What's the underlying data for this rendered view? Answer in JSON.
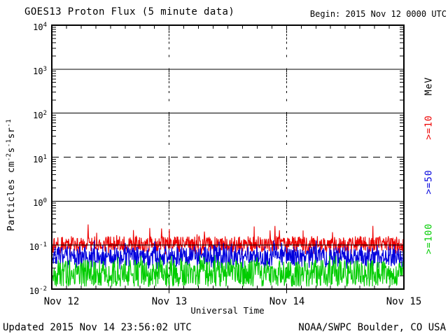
{
  "header": {
    "title": "GOES13 Proton Flux (5 minute data)",
    "begin_label": "Begin: 2015 Nov 12 0000 UTC"
  },
  "footer": {
    "updated": "Updated 2015 Nov 14 23:56:02 UTC",
    "source": "NOAA/SWPC Boulder, CO USA"
  },
  "axes": {
    "xlabel": "Universal Time",
    "ylabel": {
      "p0": "Particles cm",
      "s0": "-2",
      "p1": "s",
      "s1": "-1",
      "p2": "sr",
      "s2": "-1"
    },
    "x_tick_labels": [
      "Nov 12",
      "Nov 13",
      "Nov 14",
      "Nov 15"
    ],
    "y_tick_labels": [
      {
        "base": "10",
        "exp": "4"
      },
      {
        "base": "10",
        "exp": "3"
      },
      {
        "base": "10",
        "exp": "2"
      },
      {
        "base": "10",
        "exp": "1"
      },
      {
        "base": "10",
        "exp": "0"
      },
      {
        "base": "10",
        "exp": "-1"
      },
      {
        "base": "10",
        "exp": "-2"
      }
    ]
  },
  "legend": {
    "unit_label": "MeV",
    "unit_color": "#000000",
    "entries": [
      {
        "label": ">=10",
        "color": "#EE0000"
      },
      {
        "label": ">=50",
        "color": "#0000DD"
      },
      {
        "label": ">=100",
        "color": "#00CC00"
      }
    ]
  },
  "chart_data": {
    "type": "line",
    "title": "GOES13 Proton Flux (5 minute data)",
    "xlabel": "Universal Time",
    "ylabel": "Particles cm-2 s-1 sr-1",
    "y_scale": "log",
    "ylim": [
      0.01,
      10000
    ],
    "x_days": [
      "Nov 12",
      "Nov 13",
      "Nov 14",
      "Nov 15"
    ],
    "x_minor_tick_hours": 3,
    "sample_interval_minutes": 5,
    "points_per_day": 288,
    "grid_solid_flux": [
      1000,
      100,
      1,
      0.1
    ],
    "grid_dashed_flux": [
      10
    ],
    "dashed_day_columns": [
      "Nov 13",
      "Nov 14"
    ],
    "series": [
      {
        "name": ">=10 MeV",
        "color": "#EE0000",
        "median_flux": 0.105,
        "band": [
          0.07,
          0.16
        ],
        "spikes_to": 0.3,
        "seed": 101
      },
      {
        "name": ">=50 MeV",
        "color": "#0000DD",
        "median_flux": 0.055,
        "band": [
          0.034,
          0.095
        ],
        "spikes_to": 0.13,
        "seed": 202
      },
      {
        "name": ">=100 MeV",
        "color": "#00CC00",
        "median_flux": 0.024,
        "band": [
          0.012,
          0.046
        ],
        "spikes_to": 0.06,
        "seed": 303
      }
    ]
  }
}
